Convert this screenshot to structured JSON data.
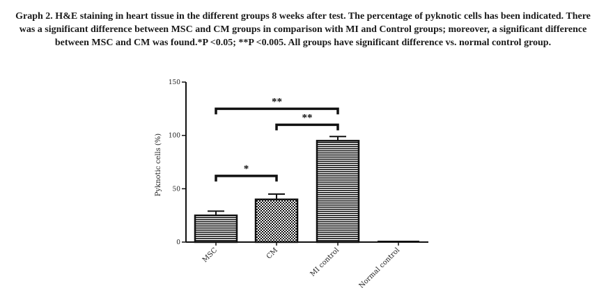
{
  "caption": "Graph 2. H&E staining in heart tissue in the different groups 8 weeks after test. The percentage of pyknotic cells has been indicated. There was a significant difference between MSC and CM groups in comparison with MI and Control groups; moreover, a significant difference between MSC and CM was found.*P <0.05; **P <0.005. All groups have significant difference vs. normal control group.",
  "chart_data": {
    "type": "bar",
    "categories": [
      "MSC",
      "CM",
      "MI control",
      "Normal control"
    ],
    "values": [
      25,
      40,
      95,
      0
    ],
    "error": [
      4,
      5,
      4,
      0
    ],
    "patterns": [
      "horizontal-stripes",
      "checkerboard",
      "horizontal-stripes",
      "none"
    ],
    "ylabel": "Pyknotic cells (%)",
    "ylim": [
      0,
      150
    ],
    "yticks": [
      0,
      50,
      100,
      150
    ],
    "significance": [
      {
        "from": 0,
        "to": 1,
        "label": "*",
        "y": 62
      },
      {
        "from": 1,
        "to": 2,
        "label": "**",
        "y": 110
      },
      {
        "from": 0,
        "to": 2,
        "label": "**",
        "y": 125
      }
    ],
    "colors": {
      "bar": "#111111",
      "background": "#ffffff"
    }
  }
}
